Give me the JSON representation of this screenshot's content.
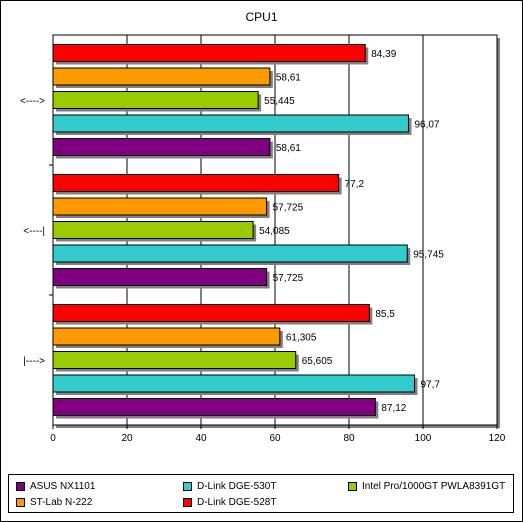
{
  "chart_data": {
    "type": "bar",
    "orientation": "horizontal",
    "title": "CPU1",
    "categories": [
      "<---->",
      "<----|",
      "|---->"
    ],
    "series": [
      {
        "name": "ASUS NX1101",
        "color": "#800080",
        "values": [
          58.61,
          57.725,
          87.12
        ],
        "labels": [
          "58,61",
          "57,725",
          "87,12"
        ]
      },
      {
        "name": "D-Link DGE-530T",
        "color": "#33CCCC",
        "values": [
          96.07,
          95.745,
          97.7
        ],
        "labels": [
          "96,07",
          "95,745",
          "97,7"
        ]
      },
      {
        "name": "Intel Pro/1000GT PWLA8391GT",
        "color": "#99CC00",
        "values": [
          55.445,
          54.085,
          65.605
        ],
        "labels": [
          "55,445",
          "54,085",
          "65,605"
        ]
      },
      {
        "name": "ST-Lab N-222",
        "color": "#FF9900",
        "values": [
          58.61,
          57.725,
          61.305
        ],
        "labels": [
          "58,61",
          "57,725",
          "61,305"
        ]
      },
      {
        "name": "D-Link DGE-528T",
        "color": "#FF0000",
        "values": [
          84.39,
          77.2,
          85.5
        ],
        "labels": [
          "84,39",
          "77,2",
          "85,5"
        ]
      }
    ],
    "xlim": [
      0,
      120
    ],
    "xticks": [
      "0",
      "20",
      "40",
      "60",
      "80",
      "100",
      "120"
    ],
    "grid": true,
    "legend_position": "bottom"
  }
}
